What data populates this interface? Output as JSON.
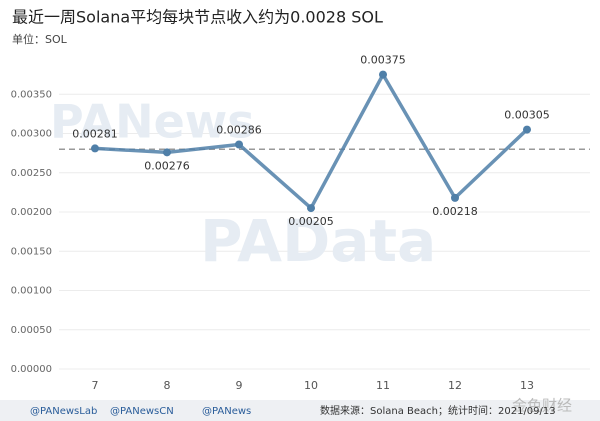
{
  "chart_data": {
    "type": "line",
    "title": "最近一周Solana平均每块节点收入约为0.0028 SOL",
    "subtitle": "单位：SOL",
    "categories": [
      "7",
      "8",
      "9",
      "10",
      "11",
      "12",
      "13"
    ],
    "values": [
      0.00281,
      0.00276,
      0.00286,
      0.00205,
      0.00375,
      0.00218,
      0.00305
    ],
    "color": "#4f7fa8",
    "ylim": [
      0,
      0.004
    ],
    "yticks": [
      {
        "value": 0,
        "label": "0.00000"
      },
      {
        "value": 0.0005,
        "label": "0.00050"
      },
      {
        "value": 0.001,
        "label": "0.00100"
      },
      {
        "value": 0.0015,
        "label": "0.00150"
      },
      {
        "value": 0.002,
        "label": "0.00200"
      },
      {
        "value": 0.0025,
        "label": "0.00250"
      },
      {
        "value": 0.003,
        "label": "0.00300"
      },
      {
        "value": 0.0035,
        "label": "0.00350"
      }
    ],
    "grid": true,
    "reference_line": 0.0028,
    "watermarks": [
      "PANews",
      "PAData",
      "金色财经"
    ],
    "footer": {
      "accounts": [
        "@PANewsLab",
        "@PANewsCN",
        "@PANews"
      ],
      "source": "数据来源：Solana Beach；统计时间：2021/09/13"
    }
  }
}
